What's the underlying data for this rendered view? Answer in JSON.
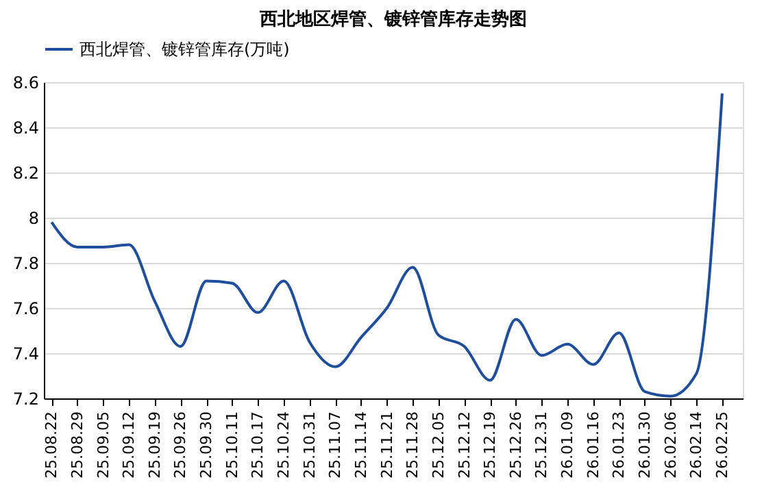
{
  "chart_data": {
    "type": "line",
    "title": "西北地区焊管、镀锌管库存走势图",
    "categories": [
      "25.08.22",
      "25.08.29",
      "25.09.05",
      "25.09.12",
      "25.09.19",
      "25.09.26",
      "25.09.30",
      "25.10.11",
      "25.10.17",
      "25.10.24",
      "25.10.31",
      "25.11.07",
      "25.11.14",
      "25.11.21",
      "25.11.28",
      "25.12.05",
      "25.12.12",
      "25.12.19",
      "25.12.26",
      "25.12.31",
      "26.01.09",
      "26.01.16",
      "26.01.23",
      "26.01.30",
      "26.02.06",
      "26.02.14",
      "26.02.25"
    ],
    "series": [
      {
        "name": "西北焊管、镀锌管库存(万吨)",
        "color": "#1f4e9c",
        "values": [
          7.98,
          7.87,
          7.87,
          7.88,
          7.63,
          7.43,
          7.72,
          7.71,
          7.58,
          7.72,
          7.45,
          7.34,
          7.47,
          7.6,
          7.78,
          7.48,
          7.43,
          7.28,
          7.55,
          7.39,
          7.44,
          7.35,
          7.49,
          7.23,
          7.21,
          7.31,
          8.55
        ]
      }
    ],
    "ylim": [
      7.2,
      8.6
    ],
    "yticks": [
      7.2,
      7.4,
      7.6,
      7.8,
      8,
      8.2,
      8.4,
      8.6
    ],
    "grid": "y",
    "legend": "top",
    "marker": "none",
    "line_style": "solid"
  }
}
